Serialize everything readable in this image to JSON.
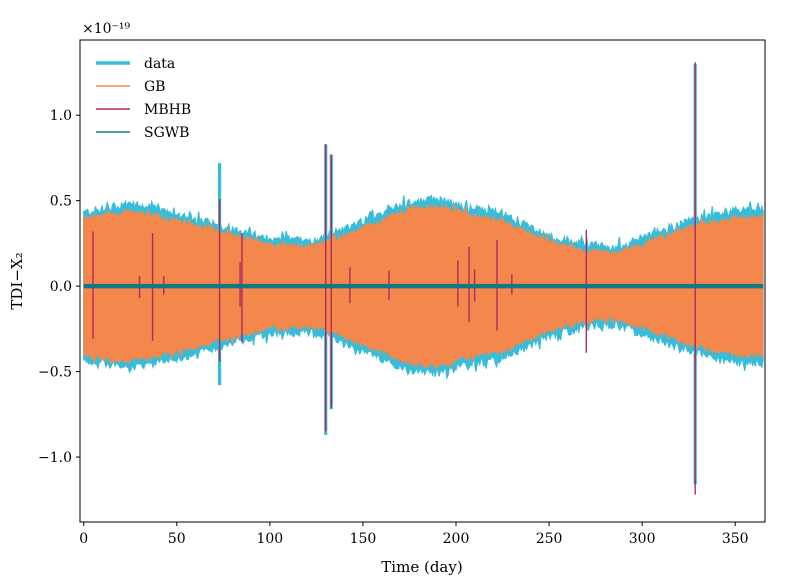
{
  "chart_data": {
    "type": "line",
    "xlabel": "Time (day)",
    "ylabel": "TDI−X₂",
    "y_multiplier": "×10⁻¹⁹",
    "xlim": [
      -2,
      366
    ],
    "ylim": [
      -1.38,
      1.44
    ],
    "xticks": [
      0,
      50,
      100,
      150,
      200,
      250,
      300,
      350
    ],
    "yticks": [
      -1.0,
      -0.5,
      0.0,
      0.5,
      1.0
    ],
    "ytick_labels": [
      "−1.0",
      "−0.5",
      "0.0",
      "0.5",
      "1.0"
    ],
    "legend_position": "upper-left",
    "series": [
      {
        "name": "data",
        "color": "#38bcd8"
      },
      {
        "name": "GB",
        "color": "#f4874b"
      },
      {
        "name": "MBHB",
        "color": "#b5275e"
      },
      {
        "name": "SGWB",
        "color": "#0f7a86"
      }
    ],
    "gb_envelope": {
      "x": [
        0,
        25,
        50,
        75,
        100,
        125,
        150,
        175,
        190,
        205,
        225,
        250,
        270,
        285,
        300,
        325,
        350,
        365
      ],
      "amplitude": [
        0.4,
        0.44,
        0.38,
        0.31,
        0.24,
        0.24,
        0.34,
        0.45,
        0.47,
        0.42,
        0.38,
        0.26,
        0.21,
        0.19,
        0.24,
        0.34,
        0.4,
        0.41
      ]
    },
    "data_envelope": {
      "x": [
        0,
        25,
        50,
        75,
        100,
        125,
        150,
        175,
        190,
        205,
        225,
        250,
        270,
        285,
        300,
        325,
        350,
        365
      ],
      "amplitude": [
        0.43,
        0.48,
        0.42,
        0.35,
        0.27,
        0.27,
        0.38,
        0.49,
        0.51,
        0.46,
        0.42,
        0.29,
        0.24,
        0.22,
        0.28,
        0.38,
        0.44,
        0.45
      ]
    },
    "data_spikes": [
      {
        "x": 73,
        "top": 0.72,
        "bottom": -0.58
      },
      {
        "x": 130,
        "top": 0.83,
        "bottom": -0.87
      },
      {
        "x": 133,
        "top": 0.77,
        "bottom": -0.72
      },
      {
        "x": 328.5,
        "top": 1.3,
        "bottom": -1.16
      }
    ],
    "mbhb_events": [
      {
        "x": 5,
        "top": 0.32,
        "bottom": -0.31
      },
      {
        "x": 30,
        "top": 0.06,
        "bottom": -0.07
      },
      {
        "x": 37,
        "top": 0.31,
        "bottom": -0.32
      },
      {
        "x": 43,
        "top": 0.06,
        "bottom": -0.05
      },
      {
        "x": 73,
        "top": 0.51,
        "bottom": -0.44
      },
      {
        "x": 84,
        "top": 0.14,
        "bottom": -0.12
      },
      {
        "x": 85,
        "top": 0.31,
        "bottom": -0.33
      },
      {
        "x": 130,
        "top": 0.83,
        "bottom": -0.85
      },
      {
        "x": 133,
        "top": 0.77,
        "bottom": -0.71
      },
      {
        "x": 143,
        "top": 0.11,
        "bottom": -0.1
      },
      {
        "x": 164,
        "top": 0.09,
        "bottom": -0.08
      },
      {
        "x": 201,
        "top": 0.15,
        "bottom": -0.12
      },
      {
        "x": 207,
        "top": 0.23,
        "bottom": -0.21
      },
      {
        "x": 210,
        "top": 0.1,
        "bottom": -0.09
      },
      {
        "x": 222,
        "top": 0.27,
        "bottom": -0.26
      },
      {
        "x": 230,
        "top": 0.07,
        "bottom": -0.05
      },
      {
        "x": 270,
        "top": 0.33,
        "bottom": -0.39
      },
      {
        "x": 328.5,
        "top": 1.31,
        "bottom": -1.22
      }
    ],
    "sgwb_amplitude": 0.013
  }
}
